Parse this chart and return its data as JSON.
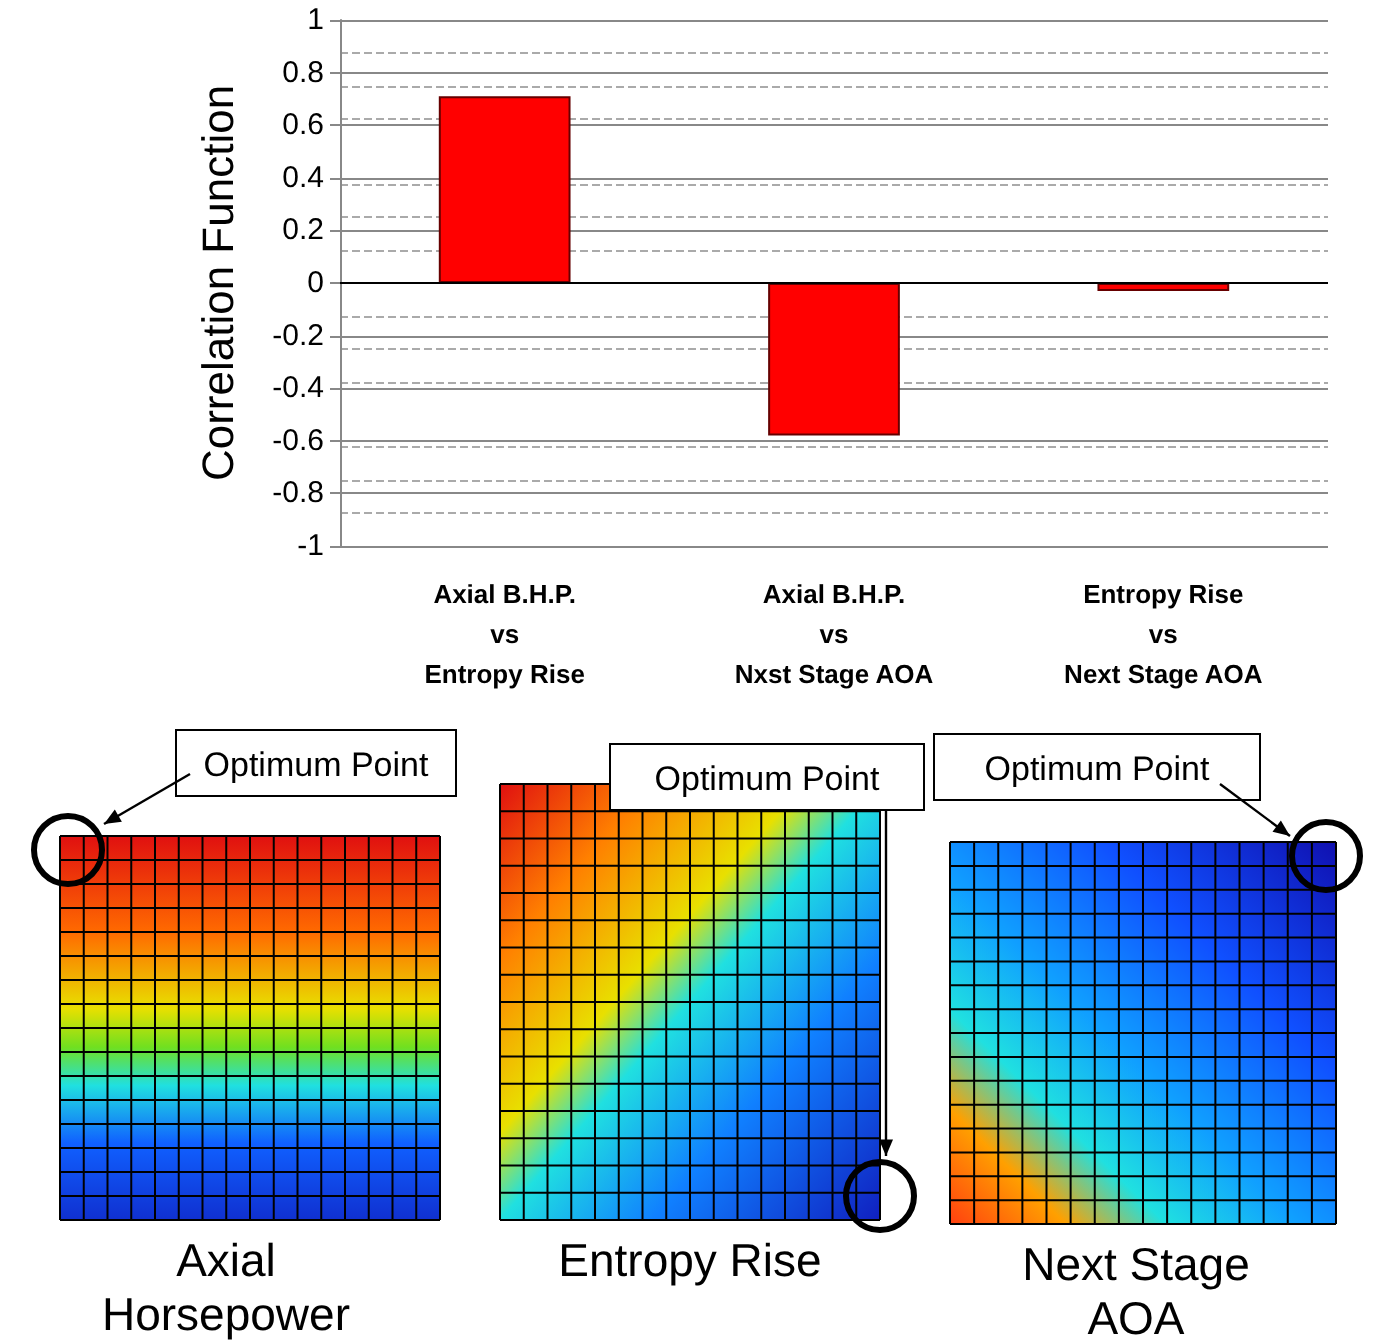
{
  "chart_data": [
    {
      "type": "bar",
      "ylabel": "Correlation Function",
      "categories": [
        "Axial B.H.P.\nvs\nEntropy Rise",
        "Axial B.H.P.\nvs\nNxst Stage AOA",
        "Entropy Rise\nvs\nNext Stage AOA"
      ],
      "values": [
        0.71,
        -0.58,
        -0.03
      ],
      "color": "#ff0000",
      "ylim": [
        -1,
        1
      ],
      "yticks": [
        -1,
        -0.8,
        -0.6,
        -0.4,
        -0.2,
        0,
        0.2,
        0.4,
        0.6,
        0.8,
        1
      ],
      "grid": "y"
    },
    {
      "type": "other",
      "title": "Axial\nHorsepower",
      "annotations": [
        "Optimum Point"
      ]
    },
    {
      "type": "other",
      "title": "Entropy Rise",
      "annotations": [
        "Optimum Point"
      ]
    },
    {
      "type": "other",
      "title": "Next Stage\nAOA",
      "annotations": [
        "Optimum Point"
      ]
    }
  ]
}
